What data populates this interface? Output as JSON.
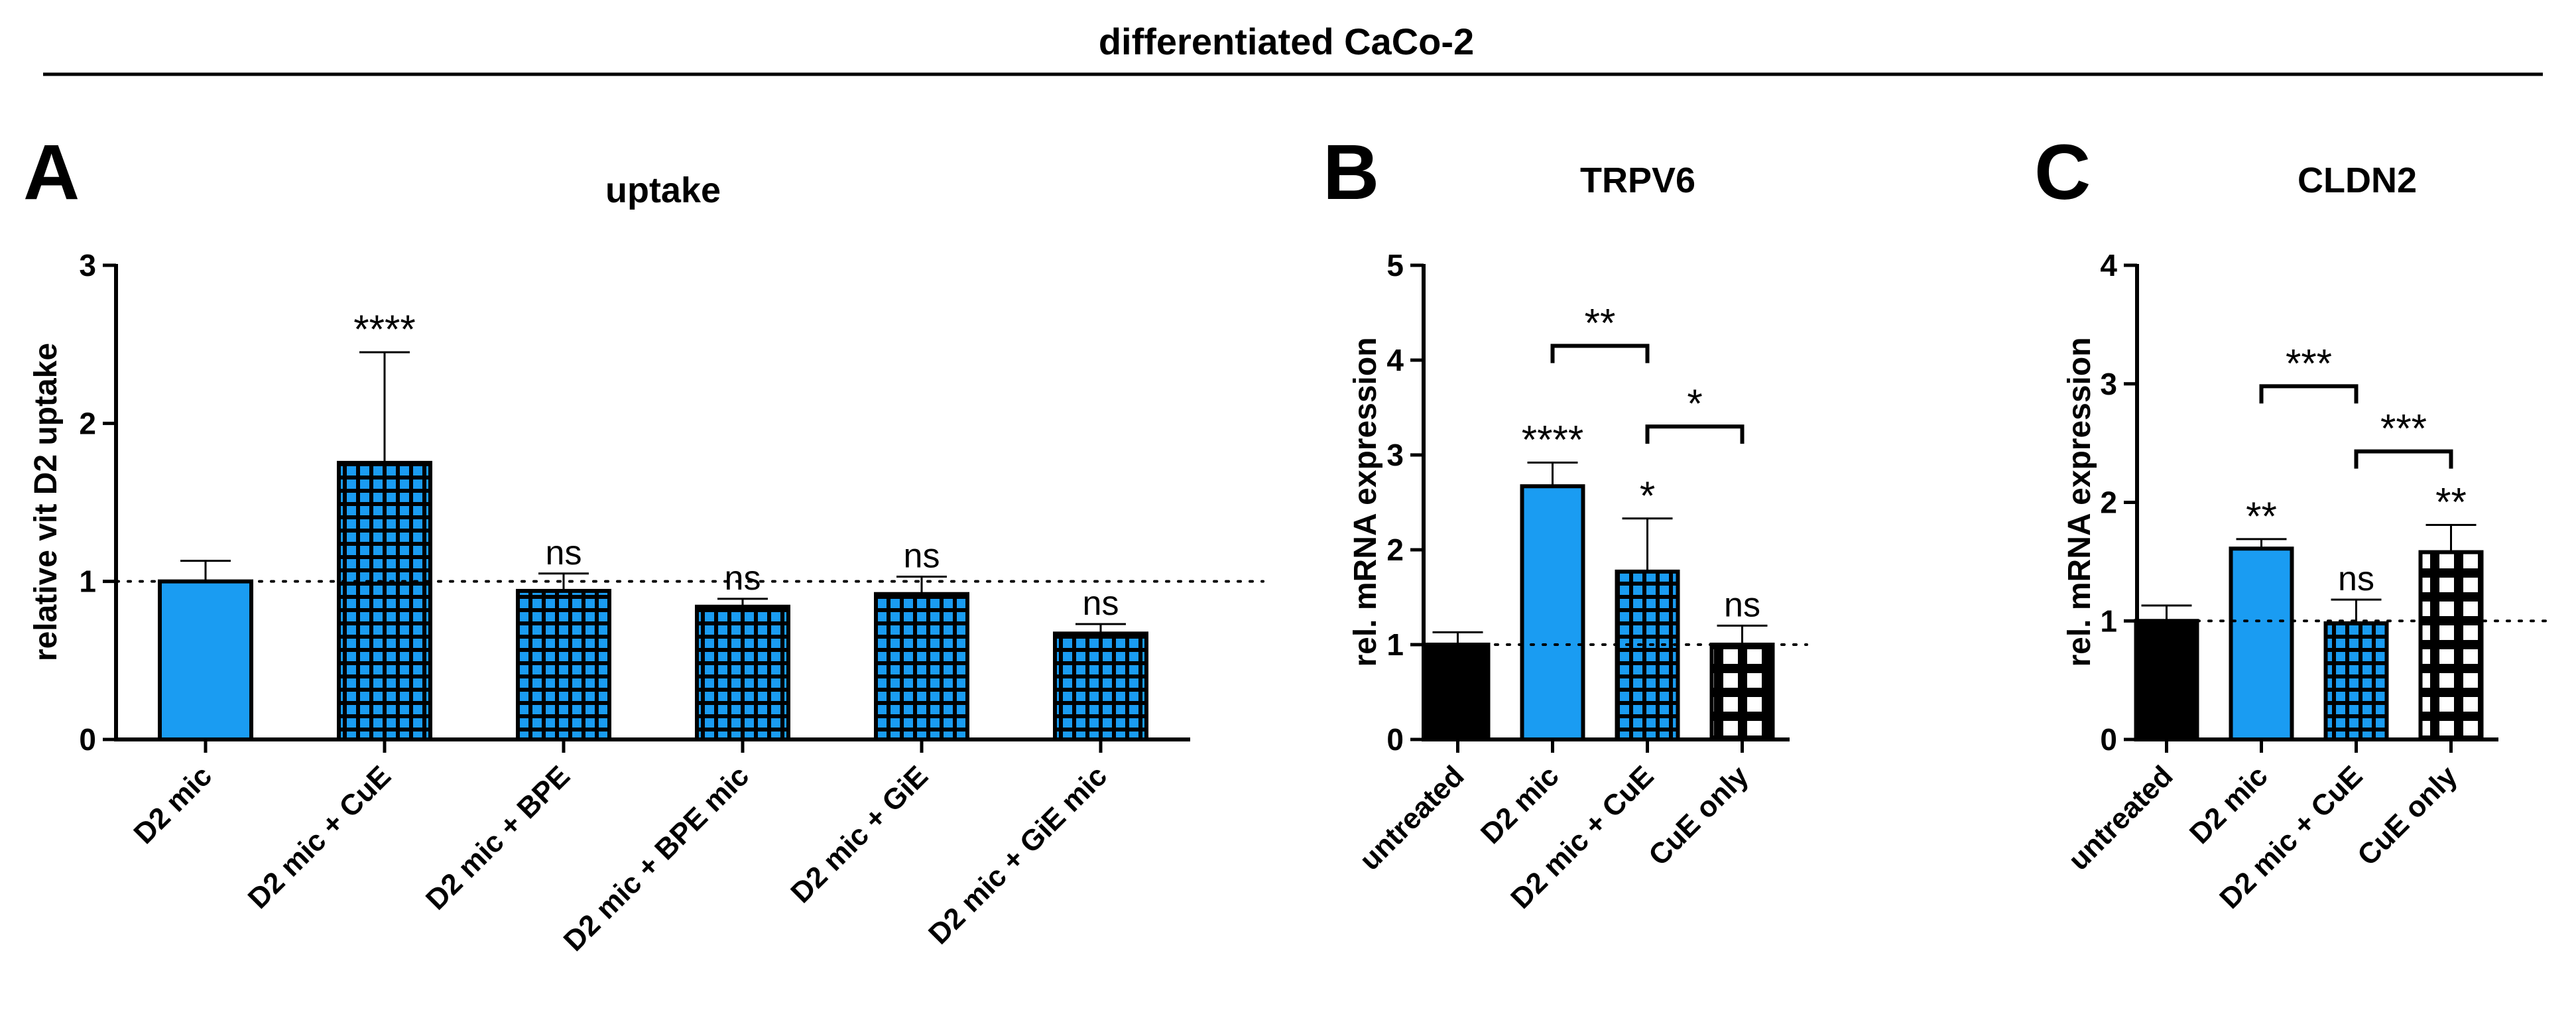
{
  "figure_title": "differentiated CaCo-2",
  "colors": {
    "blue": "#1a9cf2",
    "black": "#000000",
    "white": "#ffffff"
  },
  "chart_data": [
    {
      "panel_letter": "A",
      "type": "bar",
      "title": "uptake",
      "ylabel": "relative vit D2 uptake",
      "xlabel": "",
      "ylim": [
        0,
        3
      ],
      "yticks": [
        0,
        1,
        2,
        3
      ],
      "reference_line": 1,
      "categories": [
        "D2 mic",
        "D2 mic + CuE",
        "D2 mic + BPE",
        "D2 mic + BPE mic",
        "D2 mic + GiE",
        "D2 mic + GiE mic"
      ],
      "values": [
        1.0,
        1.75,
        0.94,
        0.84,
        0.92,
        0.67
      ],
      "errors": [
        0.13,
        0.7,
        0.11,
        0.05,
        0.11,
        0.06
      ],
      "fills": [
        "solid-blue",
        "blue-grid",
        "blue-grid",
        "blue-grid",
        "blue-grid",
        "blue-grid"
      ],
      "annotations": [
        "",
        "****",
        "ns",
        "ns",
        "ns",
        "ns"
      ],
      "comparisons": []
    },
    {
      "panel_letter": "B",
      "type": "bar",
      "title": "TRPV6",
      "ylabel": "rel. mRNA expression",
      "xlabel": "",
      "ylim": [
        0,
        5
      ],
      "yticks": [
        0,
        1,
        2,
        3,
        4,
        5
      ],
      "reference_line": 1,
      "categories": [
        "untreated",
        "D2 mic",
        "D2 mic + CuE",
        "CuE only"
      ],
      "values": [
        1.0,
        2.67,
        1.77,
        1.0
      ],
      "errors": [
        0.13,
        0.25,
        0.56,
        0.2
      ],
      "fills": [
        "solid-black",
        "solid-blue",
        "blue-grid",
        "white-grid"
      ],
      "annotations": [
        "",
        "****",
        "*",
        "ns"
      ],
      "comparisons": [
        {
          "from": 1,
          "to": 2,
          "level": 4.15,
          "label": "**"
        },
        {
          "from": 2,
          "to": 3,
          "level": 3.3,
          "label": "*"
        }
      ]
    },
    {
      "panel_letter": "C",
      "type": "bar",
      "title": "CLDN2",
      "ylabel": "rel. mRNA expression",
      "xlabel": "",
      "ylim": [
        0,
        4
      ],
      "yticks": [
        0,
        1,
        2,
        3,
        4
      ],
      "reference_line": 1,
      "categories": [
        "untreated",
        "D2 mic",
        "D2 mic + CuE",
        "CuE only"
      ],
      "values": [
        1.0,
        1.61,
        0.98,
        1.58
      ],
      "errors": [
        0.13,
        0.08,
        0.2,
        0.23
      ],
      "fills": [
        "solid-black",
        "solid-blue",
        "blue-grid",
        "white-grid"
      ],
      "annotations": [
        "",
        "**",
        "ns",
        "**"
      ],
      "comparisons": [
        {
          "from": 1,
          "to": 2,
          "level": 2.98,
          "label": "***"
        },
        {
          "from": 2,
          "to": 3,
          "level": 2.43,
          "label": "***"
        }
      ]
    }
  ]
}
